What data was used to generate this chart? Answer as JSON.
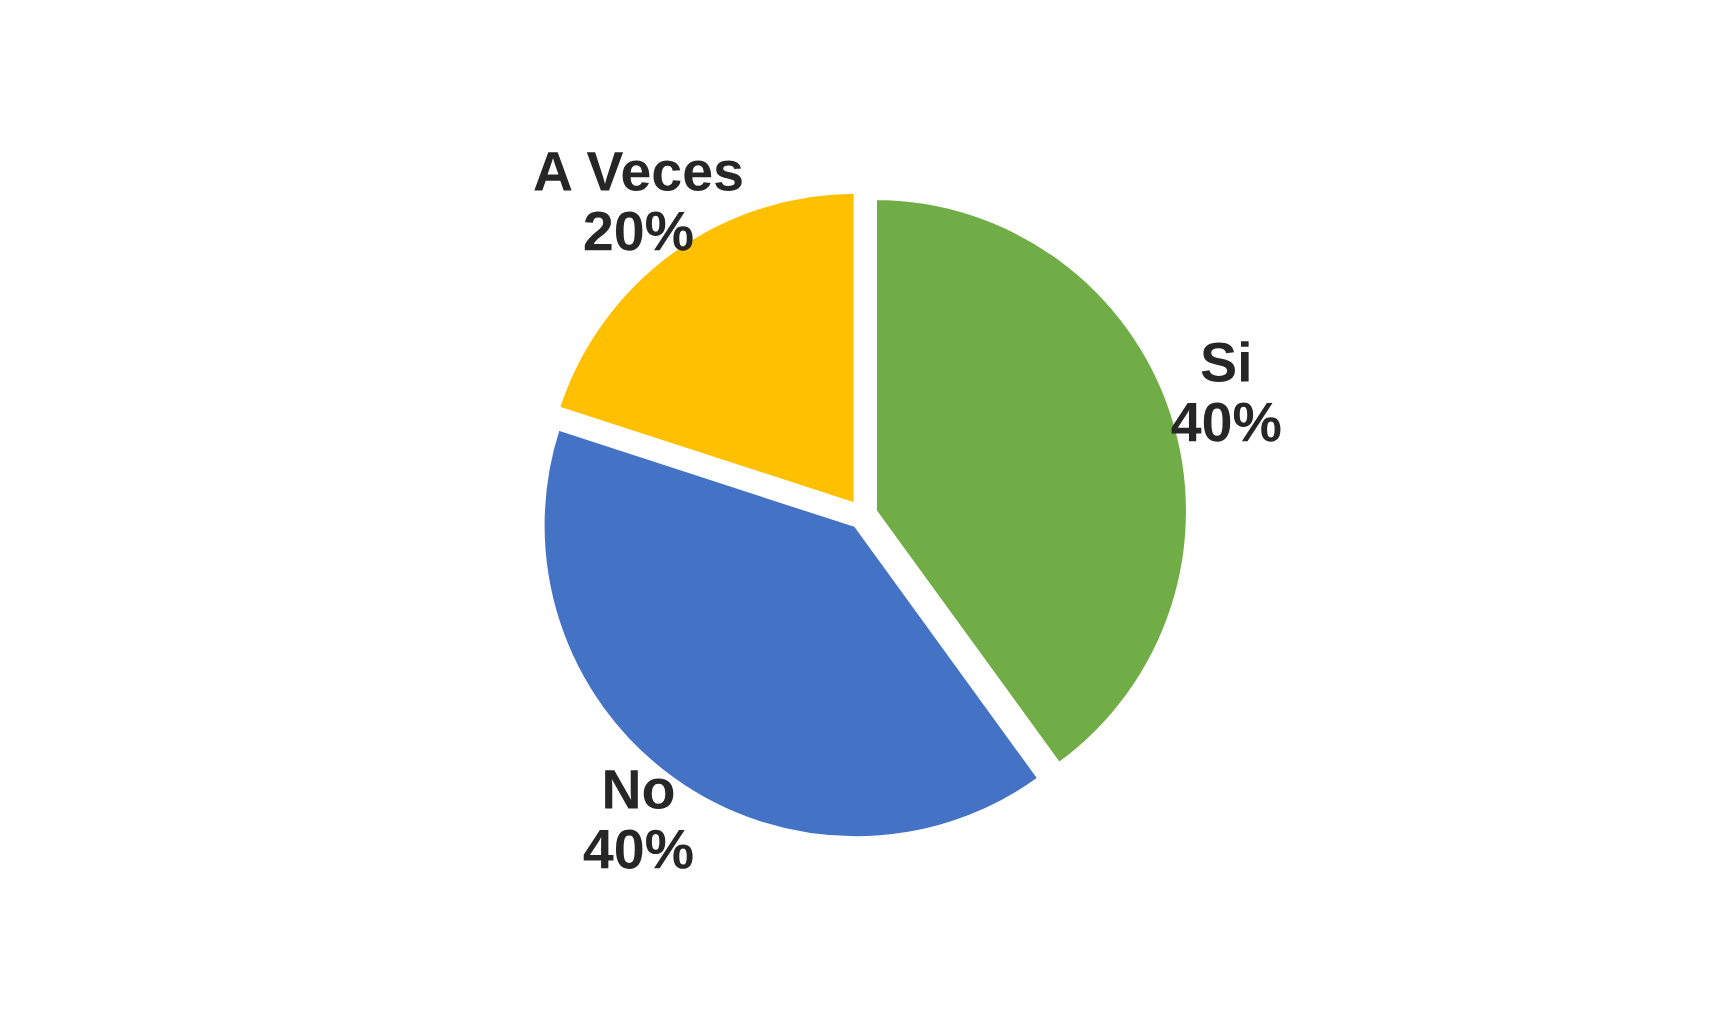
{
  "chart_data": {
    "type": "pie",
    "categories": [
      "Si",
      "No",
      "A Veces"
    ],
    "values": [
      40,
      40,
      20
    ],
    "value_labels": [
      "40%",
      "40%",
      "20%"
    ],
    "colors": [
      "#70ad47",
      "#4472c4",
      "#ffc000"
    ],
    "legend": false
  }
}
